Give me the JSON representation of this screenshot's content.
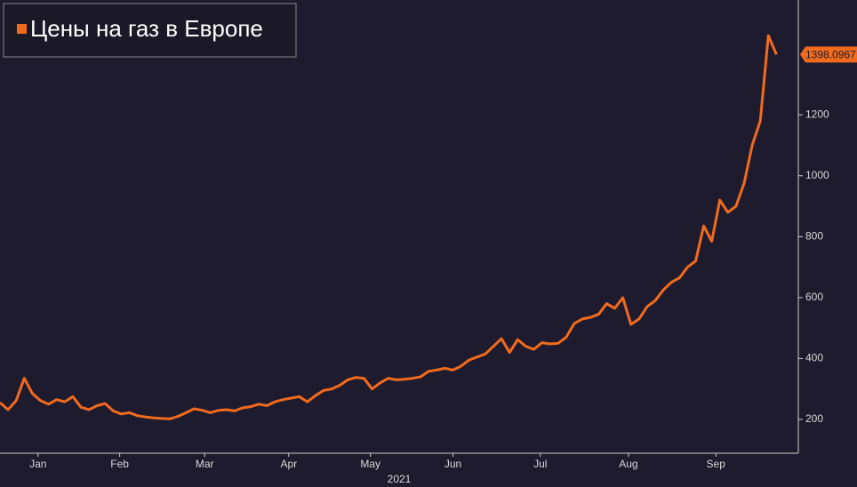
{
  "chart_data": {
    "type": "line",
    "x_label": "2021",
    "series": [
      {
        "name": "Цены на газ в Европе",
        "color": "#f26b1d",
        "values": [
          255,
          232,
          262,
          335,
          285,
          262,
          250,
          265,
          258,
          275,
          240,
          232,
          245,
          252,
          228,
          218,
          222,
          212,
          208,
          205,
          203,
          202,
          210,
          222,
          235,
          230,
          222,
          230,
          232,
          228,
          238,
          242,
          250,
          245,
          258,
          265,
          270,
          275,
          258,
          278,
          295,
          300,
          312,
          330,
          338,
          335,
          300,
          320,
          335,
          330,
          332,
          335,
          340,
          358,
          362,
          368,
          362,
          375,
          395,
          405,
          415,
          440,
          465,
          420,
          462,
          440,
          430,
          452,
          448,
          450,
          470,
          515,
          530,
          535,
          545,
          580,
          565,
          600,
          512,
          530,
          570,
          590,
          625,
          650,
          665,
          700,
          720,
          835,
          785,
          920,
          880,
          900,
          975,
          1100,
          1180,
          1460,
          1398.0967
        ]
      }
    ],
    "xlim": [
      0,
      98.7
    ],
    "xticks": [
      {
        "value": 4.7,
        "label": "Jan"
      },
      {
        "value": 14.8,
        "label": "Feb"
      },
      {
        "value": 25.3,
        "label": "Mar"
      },
      {
        "value": 35.7,
        "label": "Apr"
      },
      {
        "value": 45.8,
        "label": "May"
      },
      {
        "value": 56,
        "label": "Jun"
      },
      {
        "value": 66.8,
        "label": "Jul"
      },
      {
        "value": 77.7,
        "label": "Aug"
      },
      {
        "value": 88.5,
        "label": "Sep"
      }
    ],
    "ylim": [
      89,
      1577
    ],
    "yticks": [
      200,
      400,
      600,
      800,
      1000,
      1200
    ]
  }
}
